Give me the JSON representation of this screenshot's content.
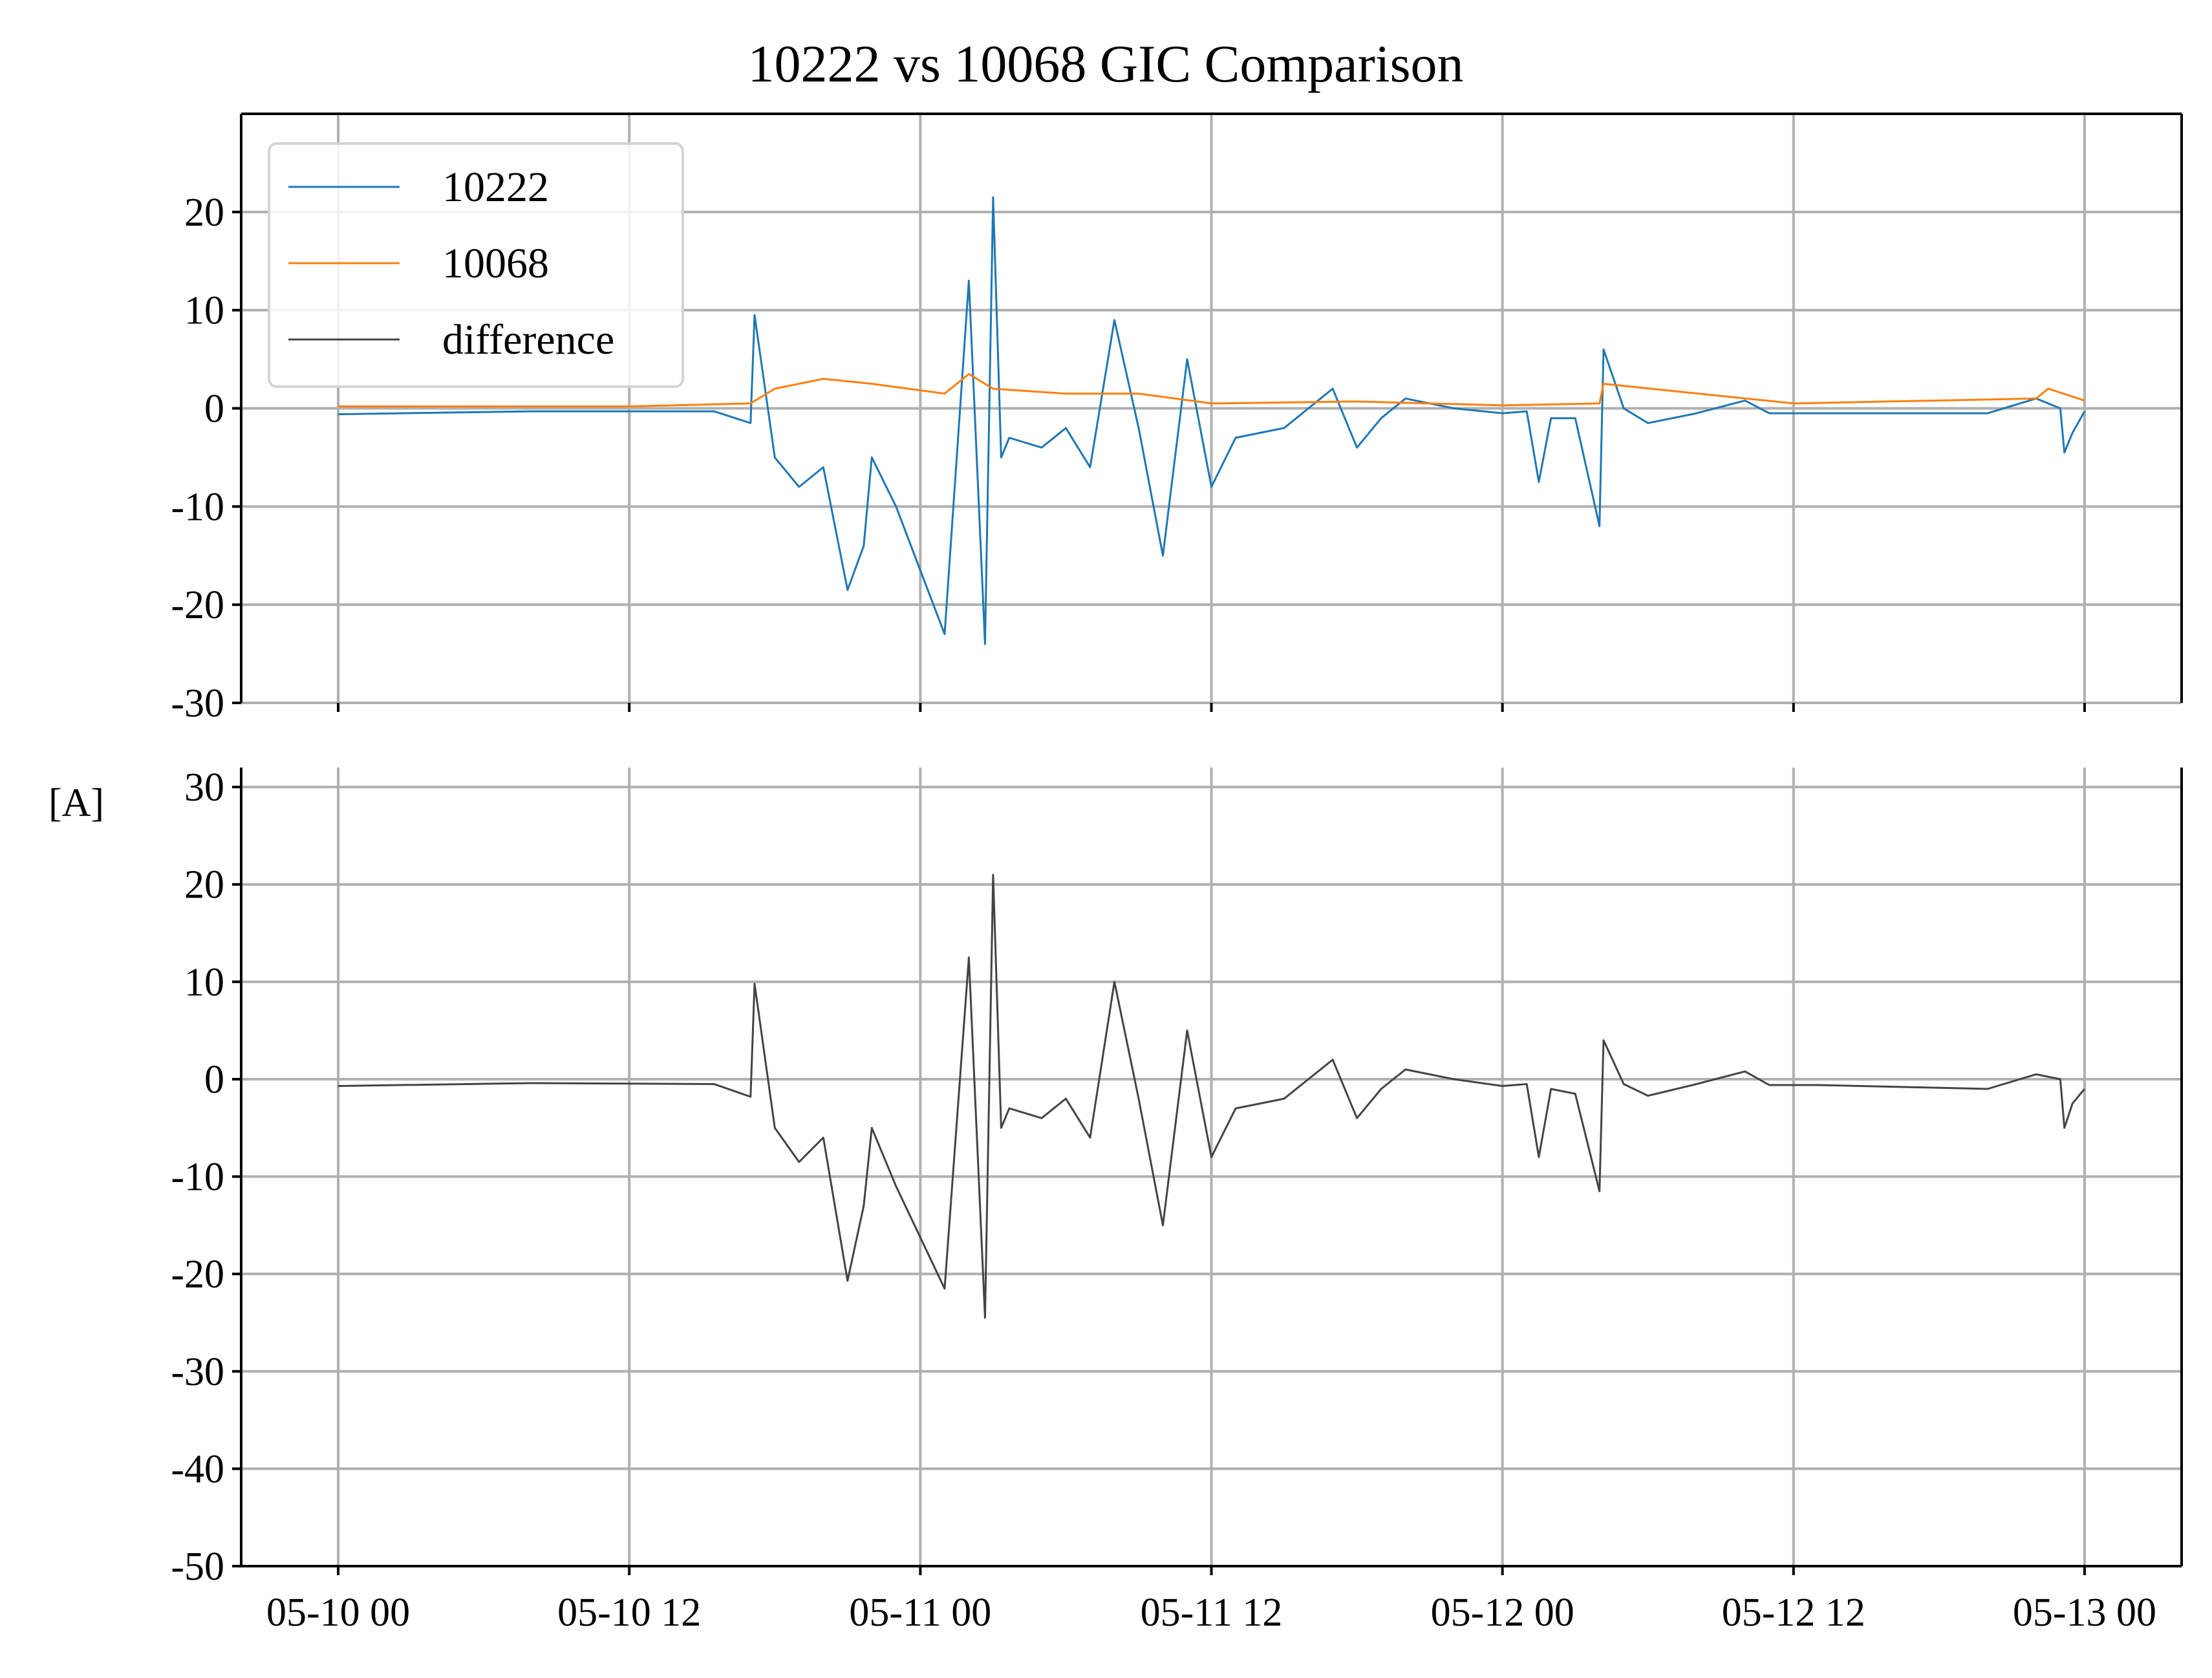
{
  "chart_data": [
    {
      "type": "line",
      "title": "10222 vs 10068 GIC Comparison",
      "ylabel": "[A]",
      "xlim": [
        "2024-05-09 20:00",
        "2024-05-13 04:00"
      ],
      "ylim": [
        -30,
        30
      ],
      "yticks": [
        -30,
        -20,
        -10,
        0,
        10,
        20
      ],
      "ytick_labels": [
        "-30",
        "-20",
        "-10",
        "0",
        "10",
        "20"
      ],
      "xticks": [
        "2024-05-10 00:00",
        "2024-05-10 12:00",
        "2024-05-11 00:00",
        "2024-05-11 12:00",
        "2024-05-12 00:00",
        "2024-05-12 12:00",
        "2024-05-13 00:00"
      ],
      "xtick_labels": [
        "05-10 00",
        "05-10 12",
        "05-11 00",
        "05-11 12",
        "05-12 00",
        "05-12 12",
        "05-13 00"
      ],
      "grid": true,
      "legend_position": "top-left",
      "series": [
        {
          "name": "10222",
          "color": "#1f77b4",
          "x": [
            "2024-05-10 00:00",
            "2024-05-10 08:00",
            "2024-05-10 15:30",
            "2024-05-10 17:00",
            "2024-05-10 17:10",
            "2024-05-10 18:00",
            "2024-05-10 19:00",
            "2024-05-10 20:00",
            "2024-05-10 21:00",
            "2024-05-10 21:40",
            "2024-05-10 22:00",
            "2024-05-10 23:00",
            "2024-05-11 01:00",
            "2024-05-11 02:00",
            "2024-05-11 02:40",
            "2024-05-11 03:00",
            "2024-05-11 03:20",
            "2024-05-11 03:40",
            "2024-05-11 05:00",
            "2024-05-11 06:00",
            "2024-05-11 07:00",
            "2024-05-11 08:00",
            "2024-05-11 09:00",
            "2024-05-11 10:00",
            "2024-05-11 11:00",
            "2024-05-11 12:00",
            "2024-05-11 13:00",
            "2024-05-11 15:00",
            "2024-05-11 17:00",
            "2024-05-11 18:00",
            "2024-05-11 19:00",
            "2024-05-11 20:00",
            "2024-05-11 22:00",
            "2024-05-12 00:00",
            "2024-05-12 01:00",
            "2024-05-12 01:30",
            "2024-05-12 02:00",
            "2024-05-12 03:00",
            "2024-05-12 04:00",
            "2024-05-12 04:10",
            "2024-05-12 05:00",
            "2024-05-12 06:00",
            "2024-05-12 08:00",
            "2024-05-12 10:00",
            "2024-05-12 11:00",
            "2024-05-12 13:00",
            "2024-05-12 20:00",
            "2024-05-12 22:00",
            "2024-05-12 23:00",
            "2024-05-12 23:10",
            "2024-05-12 23:30",
            "2024-05-13 00:00"
          ],
          "y": [
            -0.6,
            -0.3,
            -0.3,
            -1.5,
            9.5,
            -5,
            -8,
            -6,
            -18.5,
            -14,
            -5,
            -10,
            -23,
            13,
            -24,
            21.5,
            -5,
            -3,
            -4,
            -2,
            -6,
            9,
            -2,
            -15,
            5,
            -8,
            -3,
            -2,
            2,
            -4,
            -1,
            1,
            0,
            -0.5,
            -0.3,
            -7.5,
            -1,
            -1,
            -12,
            6,
            0,
            -1.5,
            -0.5,
            0.8,
            -0.5,
            -0.5,
            -0.5,
            1,
            0,
            -4.5,
            -2.5,
            -0.3
          ]
        },
        {
          "name": "10068",
          "color": "#ff7f0e",
          "x": [
            "2024-05-10 00:00",
            "2024-05-10 12:00",
            "2024-05-10 17:00",
            "2024-05-10 18:00",
            "2024-05-10 20:00",
            "2024-05-10 22:00",
            "2024-05-11 01:00",
            "2024-05-11 02:00",
            "2024-05-11 03:00",
            "2024-05-11 06:00",
            "2024-05-11 09:00",
            "2024-05-11 12:00",
            "2024-05-11 18:00",
            "2024-05-12 00:00",
            "2024-05-12 04:00",
            "2024-05-12 04:10",
            "2024-05-12 12:00",
            "2024-05-12 22:00",
            "2024-05-12 22:30",
            "2024-05-13 00:00"
          ],
          "y": [
            0.2,
            0.2,
            0.5,
            2,
            3,
            2.5,
            1.5,
            3.5,
            2,
            1.5,
            1.5,
            0.5,
            0.7,
            0.3,
            0.5,
            2.5,
            0.5,
            1,
            2,
            0.8
          ]
        }
      ]
    },
    {
      "type": "line",
      "title": "",
      "ylabel": "[A]",
      "xlim": [
        "2024-05-09 20:00",
        "2024-05-13 04:00"
      ],
      "ylim": [
        -50,
        32
      ],
      "yticks": [
        -50,
        -40,
        -30,
        -20,
        -10,
        0,
        10,
        20,
        30
      ],
      "ytick_labels": [
        "-50",
        "-40",
        "-30",
        "-20",
        "-10",
        "0",
        "10",
        "20",
        "30"
      ],
      "xticks": [
        "2024-05-10 00:00",
        "2024-05-10 12:00",
        "2024-05-11 00:00",
        "2024-05-11 12:00",
        "2024-05-12 00:00",
        "2024-05-12 12:00",
        "2024-05-13 00:00"
      ],
      "xtick_labels": [
        "05-10 00",
        "05-10 12",
        "05-11 00",
        "05-11 12",
        "05-12 00",
        "05-12 12",
        "05-13 00"
      ],
      "grid": true,
      "series": [
        {
          "name": "difference",
          "color": "#444444",
          "x": [
            "2024-05-10 00:00",
            "2024-05-10 08:00",
            "2024-05-10 15:30",
            "2024-05-10 17:00",
            "2024-05-10 17:10",
            "2024-05-10 18:00",
            "2024-05-10 19:00",
            "2024-05-10 20:00",
            "2024-05-10 21:00",
            "2024-05-10 21:40",
            "2024-05-10 22:00",
            "2024-05-10 23:00",
            "2024-05-11 01:00",
            "2024-05-11 02:00",
            "2024-05-11 02:40",
            "2024-05-11 03:00",
            "2024-05-11 03:20",
            "2024-05-11 03:40",
            "2024-05-11 05:00",
            "2024-05-11 06:00",
            "2024-05-11 07:00",
            "2024-05-11 08:00",
            "2024-05-11 09:00",
            "2024-05-11 10:00",
            "2024-05-11 11:00",
            "2024-05-11 12:00",
            "2024-05-11 13:00",
            "2024-05-11 15:00",
            "2024-05-11 17:00",
            "2024-05-11 18:00",
            "2024-05-11 19:00",
            "2024-05-11 20:00",
            "2024-05-11 22:00",
            "2024-05-12 00:00",
            "2024-05-12 01:00",
            "2024-05-12 01:30",
            "2024-05-12 02:00",
            "2024-05-12 03:00",
            "2024-05-12 04:00",
            "2024-05-12 04:10",
            "2024-05-12 05:00",
            "2024-05-12 06:00",
            "2024-05-12 08:00",
            "2024-05-12 10:00",
            "2024-05-12 11:00",
            "2024-05-12 13:00",
            "2024-05-12 20:00",
            "2024-05-12 22:00",
            "2024-05-12 23:00",
            "2024-05-12 23:10",
            "2024-05-12 23:30",
            "2024-05-13 00:00"
          ],
          "y": [
            -0.7,
            -0.4,
            -0.5,
            -1.8,
            9.8,
            -5,
            -8.5,
            -6,
            -20.7,
            -13,
            -5,
            -11,
            -21.5,
            12.5,
            -24.5,
            21,
            -5,
            -3,
            -4,
            -2,
            -6,
            10,
            -2,
            -15,
            5,
            -8,
            -3,
            -2,
            2,
            -4,
            -1,
            1,
            0,
            -0.7,
            -0.5,
            -8,
            -1,
            -1.5,
            -11.5,
            4,
            -0.5,
            -1.7,
            -0.5,
            0.8,
            -0.6,
            -0.6,
            -1,
            0.5,
            0,
            -5,
            -2.5,
            -1
          ]
        }
      ]
    }
  ]
}
